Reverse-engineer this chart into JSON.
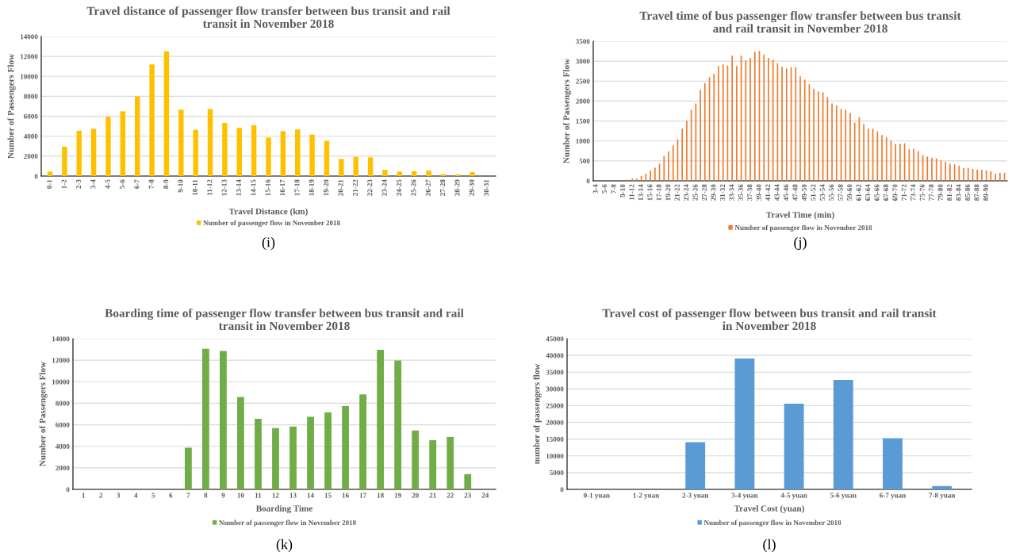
{
  "chart_data": [
    {
      "type": "bar",
      "title": "Travel distance of passenger flow transfer between bus transit and rail transit in November 2018",
      "xlabel": "Travel Distance (km)",
      "ylabel": "Number of Passengers Flow",
      "annotations": [
        "(i)"
      ],
      "categories": [
        "0-1",
        "1-2",
        "2-3",
        "3-4",
        "4-5",
        "5-6",
        "6-7",
        "7-8",
        "8-9",
        "9-10",
        "10-11",
        "11-12",
        "12-13",
        "13-14",
        "14-15",
        "15-16",
        "16-17",
        "17-18",
        "18-19",
        "19-20",
        "20-21",
        "21-22",
        "22-23",
        "23-24",
        "24-25",
        "25-26",
        "26-27",
        "27-28",
        "28-29",
        "29-30",
        "30-31"
      ],
      "series": [
        {
          "name": "Number of passenger flow in November 2018",
          "color": "#ffc000",
          "values": [
            450,
            2950,
            4550,
            4740,
            5940,
            6500,
            7990,
            11200,
            12500,
            6660,
            4640,
            6720,
            5330,
            4840,
            5100,
            3870,
            4510,
            4680,
            4160,
            3540,
            1720,
            1920,
            1880,
            620,
            450,
            490,
            550,
            200,
            160,
            390,
            0
          ]
        }
      ],
      "ylim": [
        0,
        14000
      ],
      "yticks": [
        0,
        2000,
        4000,
        6000,
        8000,
        10000,
        12000,
        14000
      ],
      "grid": "y",
      "legend": "bottom"
    },
    {
      "type": "bar",
      "title": "Travel time of bus passenger flow transfer between bus transit and rail transit in November 2018",
      "xlabel": "Travel Time (min)",
      "ylabel": "Number of Passengers Flow",
      "annotations": [
        "(j)"
      ],
      "categories": [
        "3-4",
        null,
        "5-6",
        null,
        "7-8",
        null,
        "9-10",
        null,
        "11-12",
        null,
        "13-14",
        null,
        "15-16",
        null,
        "17-18",
        null,
        "19-20",
        null,
        "21-22",
        null,
        "23-24",
        null,
        "25-26",
        null,
        "27-28",
        null,
        "29-30",
        null,
        "31-32",
        null,
        "33-34",
        null,
        "35-36",
        null,
        "37-38",
        null,
        "39-40",
        null,
        "41-42",
        null,
        "43-44",
        null,
        "45-46",
        null,
        "47-48",
        null,
        "49-50",
        null,
        "51-52",
        null,
        "53-54",
        null,
        "55-56",
        null,
        "57-58",
        null,
        "59-60",
        null,
        "61-62",
        null,
        "63-64",
        null,
        "65-66",
        null,
        "67-68",
        null,
        "69-70",
        null,
        "71-72",
        null,
        "73-74",
        null,
        "75-76",
        null,
        "77-78",
        null,
        "79-80",
        null,
        "81-82",
        null,
        "83-84",
        null,
        "85-86",
        null,
        "87-88",
        null,
        "89-90",
        null,
        null,
        null,
        null
      ],
      "series": [
        {
          "name": "Number of passenger flow in November 2018",
          "color": "#ed7d31",
          "values": [
            0,
            0,
            0,
            0,
            0,
            0,
            0,
            30,
            60,
            60,
            120,
            180,
            260,
            330,
            430,
            620,
            740,
            890,
            1040,
            1310,
            1510,
            1780,
            1940,
            2280,
            2450,
            2600,
            2680,
            2880,
            2920,
            2890,
            3140,
            2880,
            3140,
            3020,
            3080,
            3240,
            3260,
            3160,
            3080,
            3040,
            2950,
            2860,
            2820,
            2850,
            2850,
            2620,
            2540,
            2420,
            2310,
            2240,
            2220,
            2100,
            1940,
            1890,
            1800,
            1780,
            1700,
            1460,
            1600,
            1420,
            1310,
            1310,
            1240,
            1150,
            1090,
            1010,
            920,
            930,
            940,
            790,
            800,
            750,
            640,
            610,
            580,
            560,
            510,
            480,
            430,
            410,
            380,
            320,
            320,
            300,
            280,
            280,
            260,
            240,
            180,
            200,
            200
          ]
        }
      ],
      "ylim": [
        0,
        3500
      ],
      "yticks": [
        0,
        500,
        1000,
        1500,
        2000,
        2500,
        3000,
        3500
      ],
      "grid": "y",
      "legend": "bottom"
    },
    {
      "type": "bar",
      "title": "Boarding time of passenger flow transfer between bus transit and rail transit in November 2018",
      "xlabel": "Boarding Time",
      "ylabel": "Number of Passengers Flow",
      "annotations": [
        "(k)"
      ],
      "categories": [
        "1",
        "2",
        "3",
        "4",
        "5",
        "6",
        "7",
        "8",
        "9",
        "10",
        "11",
        "12",
        "13",
        "14",
        "15",
        "16",
        "17",
        "18",
        "19",
        "20",
        "21",
        "22",
        "23",
        "24"
      ],
      "series": [
        {
          "name": "Number of passenger flow in November 2018",
          "color": "#70ad47",
          "values": [
            0,
            0,
            0,
            0,
            0,
            0,
            3870,
            13060,
            12850,
            8590,
            6560,
            5690,
            5840,
            6740,
            7140,
            7740,
            8830,
            12970,
            11970,
            5470,
            4570,
            4870,
            1420,
            0
          ]
        }
      ],
      "ylim": [
        0,
        14000
      ],
      "yticks": [
        0,
        2000,
        4000,
        6000,
        8000,
        10000,
        12000,
        14000
      ],
      "grid": "y",
      "legend": "bottom"
    },
    {
      "type": "bar",
      "title": "Travel cost of passenger flow between bus transit and rail transit in November 2018",
      "xlabel": "Travel Cost (yuan)",
      "ylabel": "number of passengers flow",
      "annotations": [
        "(l)"
      ],
      "categories": [
        "0-1 yuan",
        "1-2 yuan",
        "2-3 yuan",
        "3-4 yuan",
        "4-5 yuan",
        "5-6 yuan",
        "6-7 yuan",
        "7-8 yuan"
      ],
      "series": [
        {
          "name": "Number of passenger flow in November 2018",
          "color": "#5b9bd5",
          "values": [
            0,
            0,
            14100,
            39100,
            25600,
            32700,
            15300,
            1000
          ]
        }
      ],
      "ylim": [
        0,
        45000
      ],
      "yticks": [
        0,
        5000,
        10000,
        15000,
        20000,
        25000,
        30000,
        35000,
        40000,
        45000
      ],
      "grid": "y",
      "legend": "bottom"
    }
  ]
}
